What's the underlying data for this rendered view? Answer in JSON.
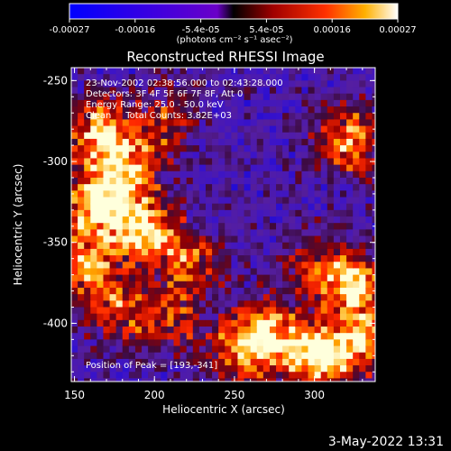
{
  "chart_data": {
    "type": "heatmap",
    "title": "Reconstructed RHESSI Image",
    "xlabel": "Heliocentric X (arcsec)",
    "ylabel": "Heliocentric Y (arcsec)",
    "xlim": [
      148,
      338
    ],
    "ylim": [
      -436,
      -242
    ],
    "x_ticks": [
      "150",
      "200",
      "250",
      "300"
    ],
    "y_ticks": [
      "-250",
      "-300",
      "-350",
      "-400"
    ],
    "colorbar": {
      "ticks": [
        "-0.00027",
        "-0.00016",
        "-5.4e-05",
        "5.4e-05",
        "0.00016",
        "0.00027"
      ],
      "range": [
        -0.00027,
        0.00027
      ],
      "unit_label": "(photons cm⁻² s⁻¹ asec⁻²)"
    },
    "annotations": [
      "23-Nov-2002 02:38:56.000 to 02:43:28.000",
      "Detectors: 3F 4F 5F 6F 7F 8F, Att 0",
      "Energy Range: 25.0 - 50.0 keV",
      "Clean     Total Counts: 3.82E+03"
    ],
    "peak_label": "Position of Peak = [193,-341]",
    "sources": [
      {
        "x": 165,
        "y": -280,
        "level": 0.9
      },
      {
        "x": 192,
        "y": -340,
        "level": 1.0
      },
      {
        "x": 160,
        "y": -325,
        "level": 0.85
      },
      {
        "x": 178,
        "y": -305,
        "level": 0.8
      },
      {
        "x": 155,
        "y": -360,
        "level": 0.75
      },
      {
        "x": 320,
        "y": -285,
        "level": 0.8
      },
      {
        "x": 325,
        "y": -375,
        "level": 0.85
      },
      {
        "x": 300,
        "y": -365,
        "level": 0.6
      },
      {
        "x": 265,
        "y": -405,
        "level": 0.9
      },
      {
        "x": 292,
        "y": -415,
        "level": 0.55
      },
      {
        "x": 248,
        "y": -418,
        "level": 0.5
      },
      {
        "x": 178,
        "y": -390,
        "level": 0.6
      },
      {
        "x": 210,
        "y": -395,
        "level": 0.5
      },
      {
        "x": 305,
        "y": -420,
        "level": 0.65
      },
      {
        "x": 330,
        "y": -410,
        "level": 0.7
      },
      {
        "x": 205,
        "y": -275,
        "level": 0.5
      },
      {
        "x": 220,
        "y": -360,
        "level": 0.55
      }
    ]
  },
  "footer": {
    "date": "3-May-2022 13:31"
  }
}
